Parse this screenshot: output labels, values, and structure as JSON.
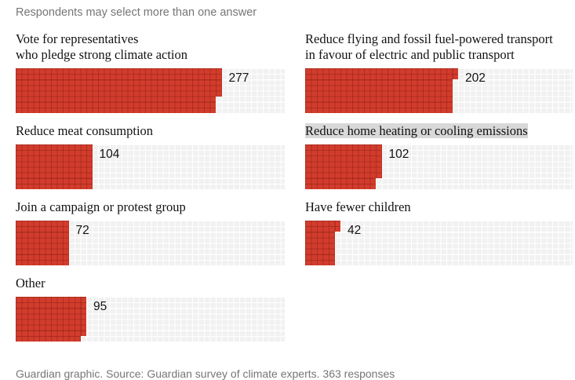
{
  "note": "Respondents may select more than one answer",
  "source_line": "Guardian graphic. Source: Guardian survey of climate experts. 363 responses",
  "colors": {
    "bar_fill": "#d23c2c",
    "bar_grid": "rgba(90,10,5,0.28)",
    "track": "#f1f1f1",
    "track_grid": "#ffffff",
    "text": "#121212",
    "muted_text": "#767676",
    "highlight": "#d8d8d8"
  },
  "chart_data": {
    "type": "bar",
    "variant": "waffle",
    "unit": "responses",
    "squares_per_unit": 1,
    "rows_per_bar": 8,
    "total_responses": 363,
    "note": "Respondents may select more than one answer",
    "items": [
      {
        "label": "Vote for representatives\nwho pledge strong climate action",
        "value": 277,
        "column": "left",
        "highlighted": false
      },
      {
        "label": "Reduce flying and fossil fuel-powered transport\nin favour of electric and public transport",
        "value": 202,
        "column": "right",
        "highlighted": false
      },
      {
        "label": "Reduce meat consumption",
        "value": 104,
        "column": "left",
        "highlighted": false
      },
      {
        "label": "Reduce home heating or cooling emissions",
        "value": 102,
        "column": "right",
        "highlighted": true
      },
      {
        "label": "Join a campaign or protest group",
        "value": 72,
        "column": "left",
        "highlighted": false
      },
      {
        "label": "Have fewer children",
        "value": 42,
        "column": "right",
        "highlighted": false
      },
      {
        "label": "Other",
        "value": 95,
        "column": "left",
        "highlighted": false
      }
    ]
  }
}
